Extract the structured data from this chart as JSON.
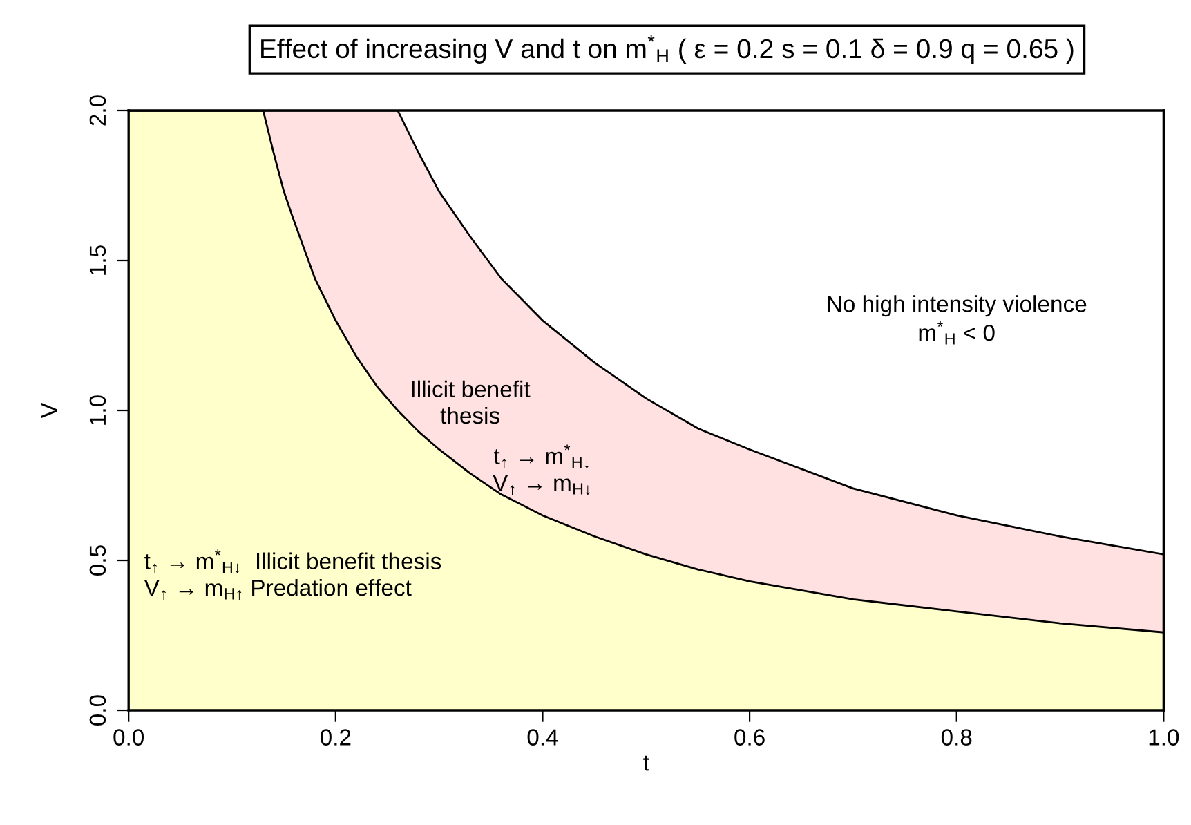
{
  "chart_data": {
    "type": "area",
    "stacked": true,
    "title": "Effect of increasing V and t on m$^{*}$$_{H}$ ( ε = 0.2 s = 0.1 δ = 0.9 q = 0.65 )",
    "xlabel": "t",
    "ylabel": "V",
    "x": [
      0,
      0.13,
      0.14,
      0.15,
      0.16,
      0.18,
      0.2,
      0.22,
      0.24,
      0.26,
      0.28,
      0.3,
      0.33,
      0.36,
      0.4,
      0.45,
      0.5,
      0.55,
      0.6,
      0.7,
      0.8,
      0.9,
      1.0
    ],
    "series": [
      {
        "color": "#ffffcc",
        "values": [
          2,
          2,
          1.86,
          1.73,
          1.63,
          1.44,
          1.3,
          1.18,
          1.08,
          1.0,
          0.93,
          0.87,
          0.79,
          0.72,
          0.65,
          0.58,
          0.52,
          0.47,
          0.43,
          0.37,
          0.33,
          0.29,
          0.26
        ]
      },
      {
        "color": "#ffe1e1",
        "values": [
          0,
          0,
          0.14,
          0.27,
          0.37,
          0.56,
          0.7,
          0.82,
          0.92,
          1.0,
          0.93,
          0.86,
          0.79,
          0.72,
          0.65,
          0.58,
          0.52,
          0.47,
          0.44,
          0.37,
          0.32,
          0.29,
          0.26
        ]
      }
    ],
    "xlim": [
      0,
      1
    ],
    "ylim": [
      0,
      2
    ],
    "xticks": [
      {
        "value": 0,
        "label": "0.0"
      },
      0.2,
      0.4,
      0.6,
      0.8,
      {
        "value": 1,
        "label": "1.0"
      }
    ],
    "yticks": [
      {
        "value": 0,
        "label": "0.0"
      },
      0.5,
      {
        "value": 1,
        "label": "1.0"
      },
      1.5,
      {
        "value": 2,
        "label": "2.0"
      }
    ],
    "grid": false,
    "legend": false,
    "line_style": "solid",
    "annotations": [
      "Illicit benefit\nthesis",
      "t$_{↑}$ → m$^{*}$$_{H↓}$\nV$_{↑}$ → m$_{H↓}$",
      "No high intensity violence\nm$^{*}$$_{H}$ < 0",
      "t$_{↑}$ → m$^{*}$$_{H↓}$  Illicit benefit thesis\nV$_{↑}$ → m$_{H↑}$ Predation effect"
    ]
  }
}
